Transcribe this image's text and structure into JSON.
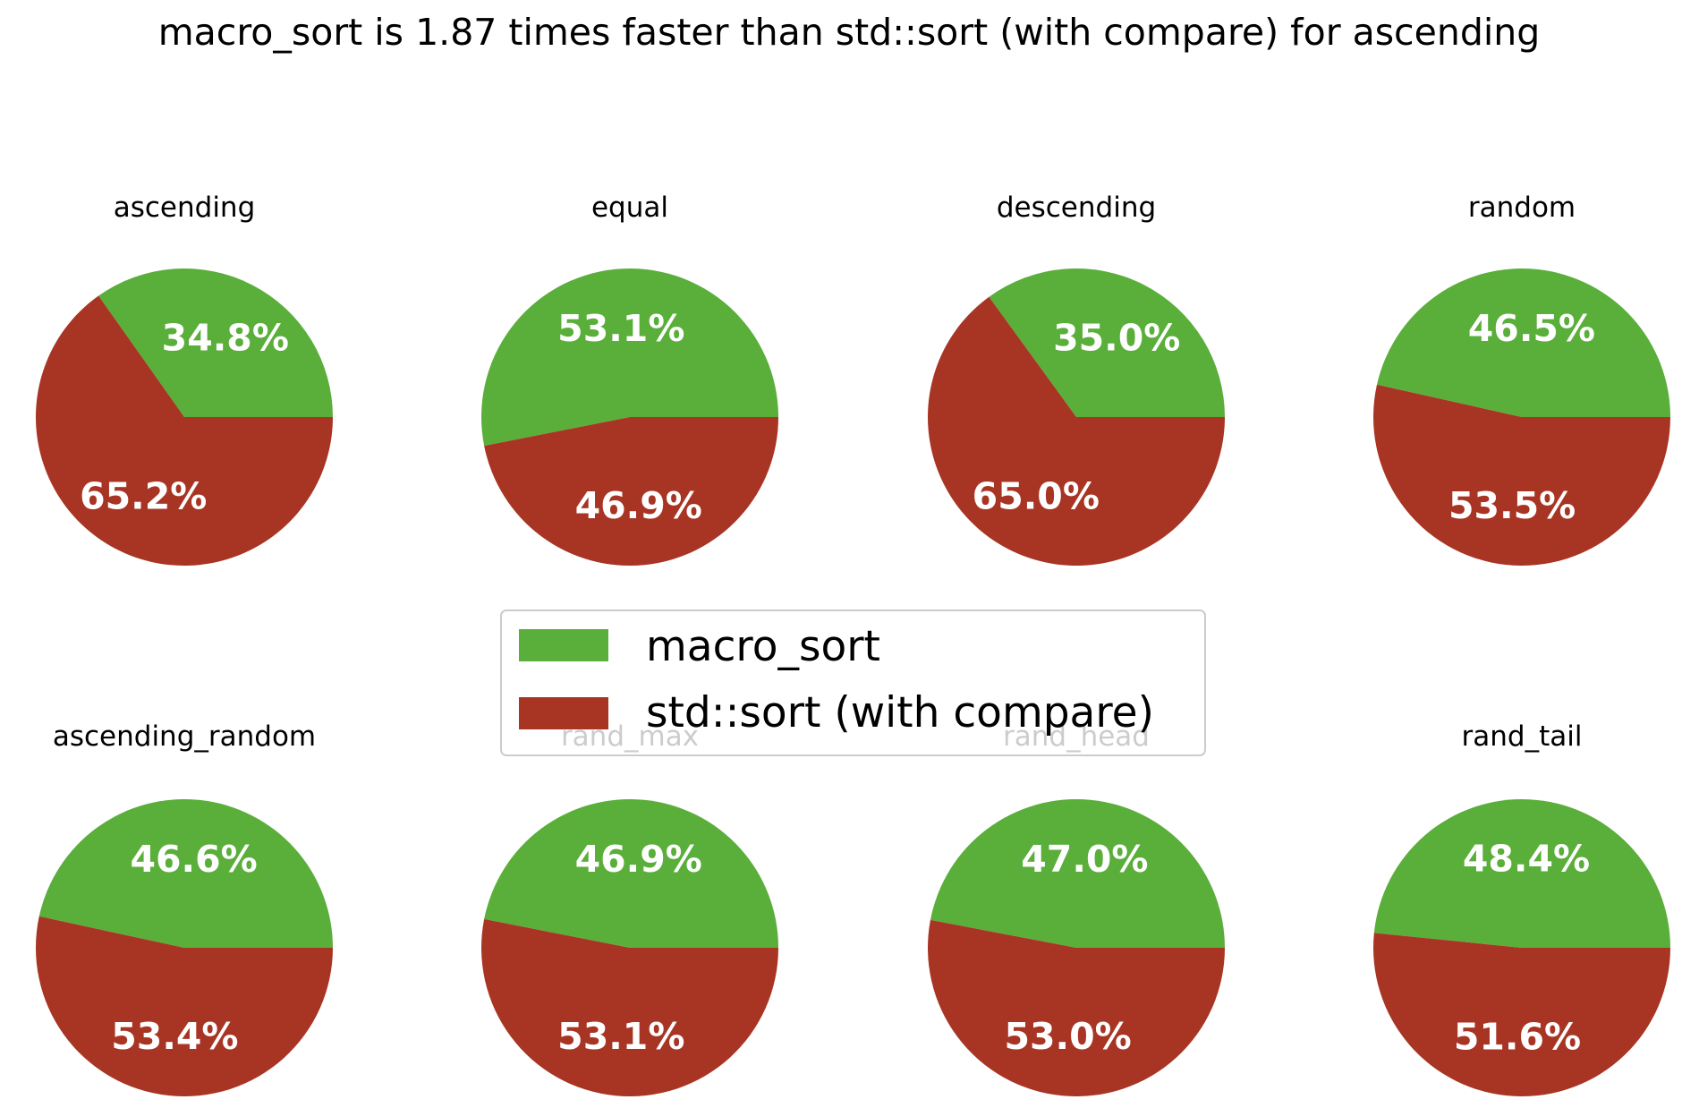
{
  "chart_data": {
    "type": "pie",
    "title": "macro_sort is 1.87 times faster than std::sort (with compare) for ascending",
    "legend": {
      "placement": "center",
      "entries": [
        {
          "label": "macro_sort",
          "color": "#5aae3a"
        },
        {
          "label": "std::sort (with compare)",
          "color": "#a83524"
        }
      ]
    },
    "series_names": [
      "macro_sort",
      "std::sort (with compare)"
    ],
    "colors": [
      "#5aae3a",
      "#a83524"
    ],
    "pies": [
      {
        "title": "ascending",
        "values": [
          34.8,
          65.2
        ],
        "labels": [
          "34.8%",
          "65.2%"
        ]
      },
      {
        "title": "equal",
        "values": [
          53.1,
          46.9
        ],
        "labels": [
          "53.1%",
          "46.9%"
        ]
      },
      {
        "title": "descending",
        "values": [
          35.0,
          65.0
        ],
        "labels": [
          "35.0%",
          "65.0%"
        ]
      },
      {
        "title": "random",
        "values": [
          46.5,
          53.5
        ],
        "labels": [
          "46.5%",
          "53.5%"
        ]
      },
      {
        "title": "ascending_random",
        "values": [
          46.6,
          53.4
        ],
        "labels": [
          "46.6%",
          "53.4%"
        ]
      },
      {
        "title": "rand_max",
        "values": [
          46.9,
          53.1
        ],
        "labels": [
          "46.9%",
          "53.1%"
        ]
      },
      {
        "title": "rand_head",
        "values": [
          47.0,
          53.0
        ],
        "labels": [
          "47.0%",
          "53.0%"
        ]
      },
      {
        "title": "rand_tail",
        "values": [
          48.4,
          51.6
        ],
        "labels": [
          "48.4%",
          "51.6%"
        ]
      }
    ]
  }
}
